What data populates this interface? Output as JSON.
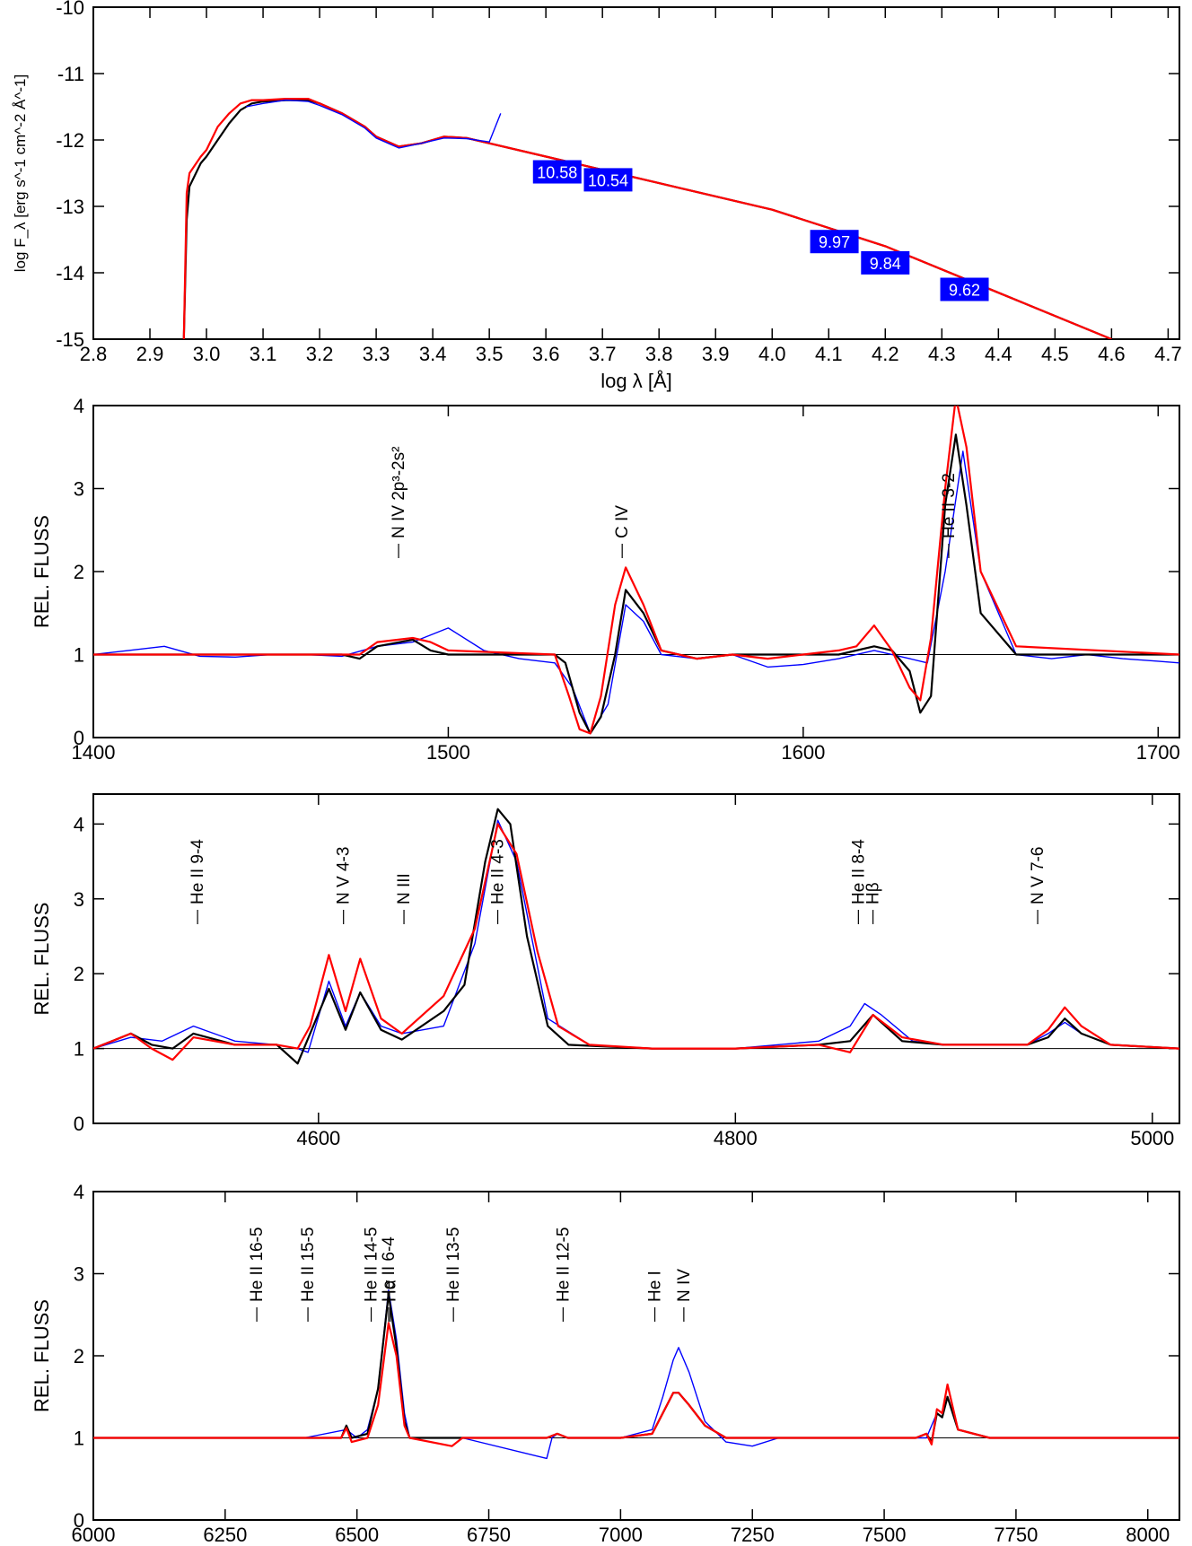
{
  "chart_data": [
    {
      "type": "line",
      "panel": "sed",
      "xlabel": "log λ [Å]",
      "ylabel": "log F_λ [erg s^-1 cm^-2 Å^-1]",
      "xlim": [
        2.8,
        4.72
      ],
      "ylim": [
        -15,
        -10
      ],
      "x_ticks": [
        "2.8",
        "2.9",
        "3.0",
        "3.1",
        "3.2",
        "3.3",
        "3.4",
        "3.5",
        "3.6",
        "3.7",
        "3.8",
        "3.9",
        "4.0",
        "4.1",
        "4.2",
        "4.3",
        "4.4",
        "4.5",
        "4.6",
        "4.7"
      ],
      "y_ticks": [
        "-10",
        "-11",
        "-12",
        "-13",
        "-14",
        "-15"
      ],
      "colors": {
        "observed": "#0000ff",
        "model_red": "#ff0000",
        "model_black": "#000000",
        "photometry_box": "#0000ff"
      },
      "series": [
        {
          "color": "#000000",
          "x": [
            2.96,
            2.965,
            2.97,
            2.99,
            3.0,
            3.02,
            3.04,
            3.06,
            3.08,
            3.1,
            3.14,
            3.18,
            3.2,
            3.24,
            3.28,
            3.3,
            3.34,
            3.38,
            3.42,
            3.46,
            3.5,
            3.6,
            3.8,
            4.0,
            4.2,
            4.4,
            4.6
          ],
          "y": [
            -15,
            -13.2,
            -12.7,
            -12.35,
            -12.25,
            -12.0,
            -11.75,
            -11.55,
            -11.45,
            -11.42,
            -11.4,
            -11.4,
            -11.45,
            -11.6,
            -11.8,
            -11.95,
            -12.1,
            -12.05,
            -11.95,
            -11.97,
            -12.05,
            -12.25,
            -12.65,
            -13.05,
            -13.6,
            -14.3,
            -15.0
          ]
        },
        {
          "color": "#ff0000",
          "x": [
            2.96,
            2.965,
            2.97,
            2.99,
            3.0,
            3.02,
            3.04,
            3.06,
            3.08,
            3.1,
            3.14,
            3.18,
            3.2,
            3.24,
            3.28,
            3.3,
            3.34,
            3.38,
            3.42,
            3.46,
            3.5,
            3.6,
            3.8,
            4.0,
            4.2,
            4.4,
            4.6
          ],
          "y": [
            -15,
            -12.8,
            -12.5,
            -12.25,
            -12.15,
            -11.8,
            -11.6,
            -11.45,
            -11.4,
            -11.4,
            -11.38,
            -11.38,
            -11.45,
            -11.6,
            -11.8,
            -11.95,
            -12.1,
            -12.05,
            -11.95,
            -11.97,
            -12.05,
            -12.25,
            -12.65,
            -13.05,
            -13.6,
            -14.3,
            -15.0
          ]
        },
        {
          "color": "#0000ff",
          "x": [
            3.07,
            3.1,
            3.14,
            3.18,
            3.2,
            3.24,
            3.28,
            3.3,
            3.34,
            3.38,
            3.42,
            3.46,
            3.5,
            3.52
          ],
          "y": [
            -11.5,
            -11.45,
            -11.4,
            -11.42,
            -11.48,
            -11.62,
            -11.82,
            -11.97,
            -12.12,
            -12.05,
            -11.97,
            -11.98,
            -12.03,
            -11.6
          ]
        }
      ],
      "photometry": [
        {
          "x": 3.62,
          "y": -12.48,
          "label": "10.58"
        },
        {
          "x": 3.71,
          "y": -12.6,
          "label": "10.54"
        },
        {
          "x": 4.11,
          "y": -13.53,
          "label": "9.97"
        },
        {
          "x": 4.2,
          "y": -13.85,
          "label": "9.84"
        },
        {
          "x": 4.34,
          "y": -14.25,
          "label": "9.62"
        }
      ]
    },
    {
      "type": "line",
      "panel": "uv",
      "xlabel": "",
      "ylabel": "REL. FLUSS",
      "xlim": [
        1400,
        1706
      ],
      "ylim": [
        0,
        4
      ],
      "x_ticks": [
        "1400",
        "1500",
        "1600",
        "1700"
      ],
      "y_ticks": [
        "0",
        "1",
        "2",
        "3",
        "4"
      ],
      "series": [
        {
          "color": "#0000ff",
          "x": [
            1400,
            1410,
            1420,
            1430,
            1440,
            1450,
            1460,
            1470,
            1480,
            1490,
            1500,
            1510,
            1520,
            1530,
            1535,
            1540,
            1545,
            1550,
            1555,
            1560,
            1570,
            1580,
            1590,
            1600,
            1610,
            1620,
            1630,
            1635,
            1640,
            1645,
            1650,
            1660,
            1670,
            1680,
            1690,
            1700,
            1706
          ],
          "y": [
            1.0,
            1.05,
            1.1,
            0.98,
            0.97,
            1.0,
            1.0,
            0.98,
            1.1,
            1.15,
            1.32,
            1.05,
            0.95,
            0.9,
            0.6,
            0.05,
            0.4,
            1.6,
            1.4,
            1.0,
            0.95,
            1.0,
            0.85,
            0.88,
            0.95,
            1.05,
            0.95,
            0.9,
            2.0,
            3.45,
            2.0,
            1.0,
            0.95,
            1.0,
            0.95,
            0.92,
            0.9
          ]
        },
        {
          "color": "#000000",
          "x": [
            1400,
            1470,
            1475,
            1480,
            1490,
            1495,
            1500,
            1530,
            1533,
            1537,
            1540,
            1543,
            1547,
            1550,
            1555,
            1560,
            1570,
            1580,
            1590,
            1600,
            1610,
            1620,
            1625,
            1630,
            1633,
            1636,
            1640,
            1643,
            1646,
            1650,
            1660,
            1706
          ],
          "y": [
            1.0,
            1.0,
            0.95,
            1.1,
            1.18,
            1.05,
            1.0,
            1.0,
            0.9,
            0.3,
            0.05,
            0.25,
            1.0,
            1.78,
            1.5,
            1.05,
            0.95,
            1.0,
            1.0,
            1.0,
            1.0,
            1.1,
            1.05,
            0.8,
            0.3,
            0.5,
            2.8,
            3.65,
            2.8,
            1.5,
            1.0,
            1.0
          ]
        },
        {
          "color": "#ff0000",
          "x": [
            1400,
            1470,
            1475,
            1480,
            1490,
            1495,
            1500,
            1530,
            1534,
            1537,
            1540,
            1543,
            1547,
            1550,
            1555,
            1560,
            1570,
            1580,
            1590,
            1600,
            1610,
            1615,
            1620,
            1625,
            1630,
            1633,
            1636,
            1640,
            1643,
            1646,
            1650,
            1660,
            1706
          ],
          "y": [
            1.0,
            1.0,
            1.0,
            1.15,
            1.2,
            1.15,
            1.05,
            1.0,
            0.5,
            0.1,
            0.05,
            0.5,
            1.6,
            2.05,
            1.6,
            1.05,
            0.95,
            1.0,
            0.95,
            1.0,
            1.05,
            1.1,
            1.35,
            1.05,
            0.6,
            0.45,
            1.2,
            3.0,
            4.1,
            3.5,
            2.0,
            1.1,
            1.0
          ]
        }
      ],
      "annotations": [
        {
          "x": 1486,
          "text": "N IV 2p³-2s²"
        },
        {
          "x": 1549,
          "text": "C IV"
        },
        {
          "x": 1641,
          "text": "He II 3-2"
        }
      ]
    },
    {
      "type": "line",
      "panel": "optical",
      "xlabel": "",
      "ylabel": "REL. FLUSS",
      "xlim": [
        4492,
        5013
      ],
      "ylim": [
        0,
        4.4
      ],
      "x_ticks": [
        "4600",
        "4800",
        "5000"
      ],
      "y_ticks": [
        "0",
        "1",
        "2",
        "3",
        "4"
      ],
      "series": [
        {
          "color": "#0000ff",
          "x": [
            4492,
            4510,
            4525,
            4540,
            4560,
            4580,
            4590,
            4595,
            4605,
            4613,
            4620,
            4630,
            4640,
            4660,
            4675,
            4686,
            4695,
            4710,
            4730,
            4760,
            4800,
            4840,
            4855,
            4862,
            4870,
            4885,
            4900,
            4940,
            4950,
            4958,
            4966,
            4980,
            5013
          ],
          "y": [
            1.0,
            1.15,
            1.1,
            1.3,
            1.1,
            1.05,
            1.0,
            0.95,
            1.9,
            1.3,
            1.75,
            1.3,
            1.2,
            1.3,
            2.4,
            4.05,
            3.5,
            1.4,
            1.05,
            1.0,
            1.0,
            1.1,
            1.3,
            1.6,
            1.45,
            1.1,
            1.05,
            1.05,
            1.2,
            1.35,
            1.2,
            1.05,
            1.0
          ]
        },
        {
          "color": "#000000",
          "x": [
            4492,
            4510,
            4520,
            4530,
            4540,
            4560,
            4580,
            4590,
            4596,
            4605,
            4613,
            4620,
            4630,
            4640,
            4660,
            4670,
            4680,
            4686,
            4692,
            4700,
            4710,
            4720,
            4760,
            4800,
            4840,
            4855,
            4866,
            4880,
            4900,
            4940,
            4950,
            4958,
            4966,
            4980,
            5013
          ],
          "y": [
            1.0,
            1.2,
            1.05,
            1.0,
            1.2,
            1.05,
            1.05,
            0.8,
            1.2,
            1.8,
            1.25,
            1.75,
            1.25,
            1.12,
            1.5,
            1.85,
            3.5,
            4.2,
            4.0,
            2.5,
            1.3,
            1.05,
            1.0,
            1.0,
            1.05,
            1.1,
            1.45,
            1.1,
            1.05,
            1.05,
            1.15,
            1.4,
            1.2,
            1.05,
            1.0
          ]
        },
        {
          "color": "#ff0000",
          "x": [
            4492,
            4510,
            4520,
            4530,
            4540,
            4560,
            4580,
            4590,
            4596,
            4605,
            4613,
            4620,
            4630,
            4640,
            4660,
            4675,
            4686,
            4695,
            4705,
            4715,
            4730,
            4760,
            4800,
            4840,
            4855,
            4866,
            4880,
            4900,
            4940,
            4950,
            4958,
            4966,
            4980,
            5013
          ],
          "y": [
            1.0,
            1.2,
            1.0,
            0.85,
            1.15,
            1.05,
            1.05,
            1.0,
            1.3,
            2.25,
            1.5,
            2.2,
            1.4,
            1.2,
            1.7,
            2.6,
            4.0,
            3.6,
            2.3,
            1.3,
            1.05,
            1.0,
            1.0,
            1.05,
            0.95,
            1.45,
            1.15,
            1.05,
            1.05,
            1.25,
            1.55,
            1.3,
            1.05,
            1.0
          ]
        }
      ],
      "annotations": [
        {
          "x": 4542,
          "text": "He II 9-4"
        },
        {
          "x": 4612,
          "text": "N V 4-3"
        },
        {
          "x": 4641,
          "text": "N III"
        },
        {
          "x": 4686,
          "text": "He II 4-3"
        },
        {
          "x": 4859,
          "text": "He II 8-4"
        },
        {
          "x": 4866,
          "text": "Hβ"
        },
        {
          "x": 4945,
          "text": "N V 7-6"
        }
      ]
    },
    {
      "type": "line",
      "panel": "red",
      "xlabel": "",
      "ylabel": "REL. FLUSS",
      "xlim": [
        6000,
        8060
      ],
      "ylim": [
        0,
        4
      ],
      "x_ticks": [
        "6000",
        "6250",
        "6500",
        "6750",
        "7000",
        "7250",
        "7500",
        "7750",
        "8000"
      ],
      "y_ticks": [
        "0",
        "1",
        "2",
        "3",
        "4"
      ],
      "series": [
        {
          "color": "#0000ff",
          "x": [
            6000,
            6200,
            6400,
            6480,
            6500,
            6520,
            6540,
            6560,
            6575,
            6590,
            6600,
            6700,
            6860,
            6870,
            6880,
            6900,
            7000,
            7060,
            7080,
            7100,
            7110,
            7130,
            7160,
            7200,
            7250,
            7300,
            7400,
            7560,
            7580,
            7600,
            7610,
            7620,
            7640,
            7700,
            8060
          ],
          "y": [
            1.0,
            1.0,
            1.0,
            1.1,
            1.0,
            1.1,
            1.6,
            2.8,
            2.2,
            1.3,
            1.0,
            1.0,
            0.75,
            1.0,
            1.05,
            1.0,
            1.0,
            1.1,
            1.5,
            1.95,
            2.1,
            1.8,
            1.2,
            0.95,
            0.9,
            1.0,
            1.0,
            1.0,
            1.0,
            1.3,
            1.25,
            1.5,
            1.1,
            1.0,
            1.0
          ]
        },
        {
          "color": "#000000",
          "x": [
            6000,
            6200,
            6400,
            6470,
            6480,
            6490,
            6520,
            6540,
            6560,
            6575,
            6590,
            6600,
            6700,
            6860,
            6880,
            6900,
            7000,
            7060,
            7080,
            7100,
            7110,
            7130,
            7160,
            7200,
            7560,
            7580,
            7590,
            7600,
            7610,
            7620,
            7640,
            7700,
            8060
          ],
          "y": [
            1.0,
            1.0,
            1.0,
            1.0,
            1.15,
            1.0,
            1.05,
            1.6,
            2.75,
            2.1,
            1.2,
            1.0,
            1.0,
            1.0,
            1.05,
            1.0,
            1.0,
            1.05,
            1.3,
            1.55,
            1.55,
            1.4,
            1.15,
            1.0,
            1.0,
            1.05,
            0.95,
            1.3,
            1.25,
            1.5,
            1.1,
            1.0,
            1.0
          ]
        },
        {
          "color": "#ff0000",
          "x": [
            6000,
            6200,
            6400,
            6470,
            6480,
            6490,
            6520,
            6540,
            6560,
            6575,
            6590,
            6600,
            6680,
            6700,
            6860,
            6880,
            6900,
            7000,
            7060,
            7080,
            7100,
            7110,
            7130,
            7160,
            7200,
            7560,
            7580,
            7590,
            7600,
            7610,
            7620,
            7640,
            7700,
            8060
          ],
          "y": [
            1.0,
            1.0,
            1.0,
            1.0,
            1.12,
            0.95,
            1.0,
            1.4,
            2.4,
            2.0,
            1.15,
            1.0,
            0.9,
            1.0,
            1.0,
            1.05,
            1.0,
            1.0,
            1.05,
            1.3,
            1.55,
            1.55,
            1.4,
            1.15,
            1.0,
            1.0,
            1.05,
            0.92,
            1.35,
            1.3,
            1.65,
            1.1,
            1.0,
            1.0
          ]
        }
      ],
      "annotations": [
        {
          "x": 6310,
          "text": "He II 16-5"
        },
        {
          "x": 6407,
          "text": "He II 15-5"
        },
        {
          "x": 6527,
          "text": "He II 14-5"
        },
        {
          "x": 6560,
          "text": "He II 6-4"
        },
        {
          "x": 6563,
          "text": "Hα"
        },
        {
          "x": 6683,
          "text": "He II 13-5"
        },
        {
          "x": 6891,
          "text": "He II 12-5"
        },
        {
          "x": 7065,
          "text": "He I"
        },
        {
          "x": 7120,
          "text": "N IV"
        }
      ]
    }
  ]
}
